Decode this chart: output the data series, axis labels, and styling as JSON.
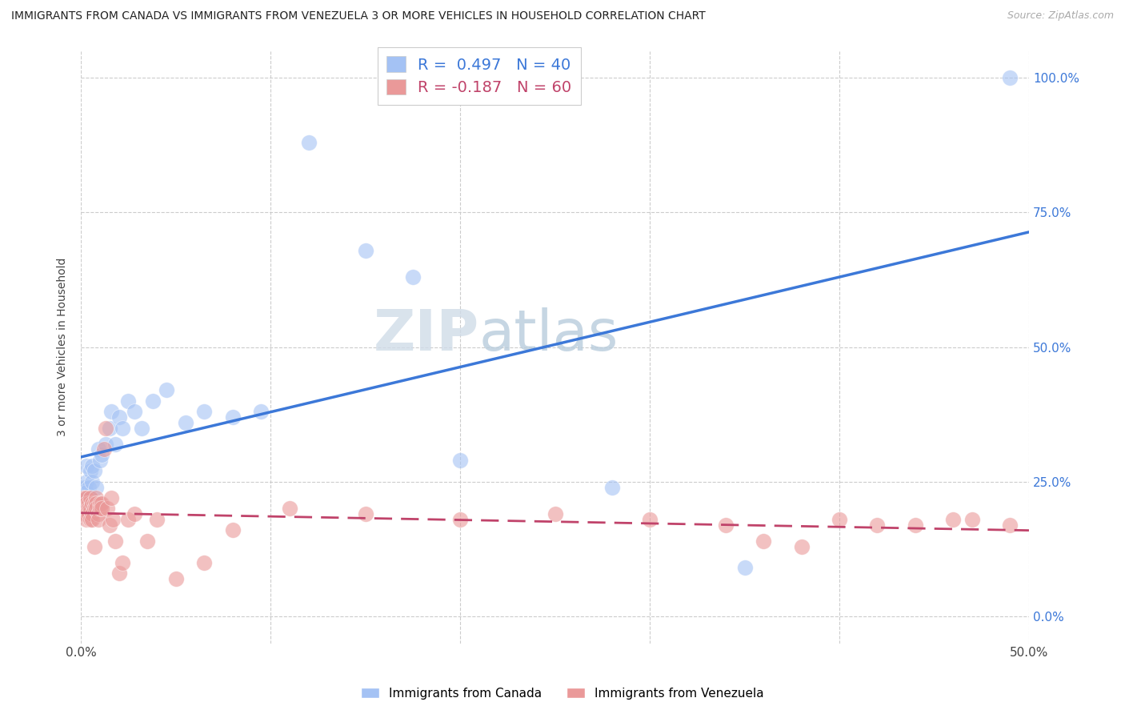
{
  "title": "IMMIGRANTS FROM CANADA VS IMMIGRANTS FROM VENEZUELA 3 OR MORE VEHICLES IN HOUSEHOLD CORRELATION CHART",
  "source": "Source: ZipAtlas.com",
  "ylabel": "3 or more Vehicles in Household",
  "xlim": [
    0.0,
    0.5
  ],
  "ylim": [
    -0.05,
    1.05
  ],
  "canada_color": "#a4c2f4",
  "venezuela_color": "#ea9999",
  "canada_line_color": "#3c78d8",
  "venezuela_line_color": "#c0436a",
  "R_canada": 0.497,
  "N_canada": 40,
  "R_venezuela": -0.187,
  "N_venezuela": 60,
  "legend_label_canada": "Immigrants from Canada",
  "legend_label_venezuela": "Immigrants from Venezuela",
  "watermark_zip": "ZIP",
  "watermark_atlas": "atlas",
  "canada_x": [
    0.001,
    0.001,
    0.002,
    0.002,
    0.003,
    0.003,
    0.003,
    0.004,
    0.004,
    0.005,
    0.005,
    0.006,
    0.006,
    0.007,
    0.008,
    0.009,
    0.01,
    0.011,
    0.013,
    0.015,
    0.016,
    0.018,
    0.02,
    0.022,
    0.025,
    0.028,
    0.032,
    0.038,
    0.045,
    0.055,
    0.065,
    0.08,
    0.095,
    0.12,
    0.15,
    0.175,
    0.2,
    0.28,
    0.35,
    0.49
  ],
  "canada_y": [
    0.22,
    0.2,
    0.24,
    0.21,
    0.25,
    0.23,
    0.28,
    0.22,
    0.24,
    0.27,
    0.22,
    0.25,
    0.28,
    0.27,
    0.24,
    0.31,
    0.29,
    0.3,
    0.32,
    0.35,
    0.38,
    0.32,
    0.37,
    0.35,
    0.4,
    0.38,
    0.35,
    0.4,
    0.42,
    0.36,
    0.38,
    0.37,
    0.38,
    0.88,
    0.68,
    0.63,
    0.29,
    0.24,
    0.09,
    1.0
  ],
  "venezuela_x": [
    0.001,
    0.001,
    0.002,
    0.002,
    0.002,
    0.003,
    0.003,
    0.003,
    0.003,
    0.004,
    0.004,
    0.004,
    0.005,
    0.005,
    0.005,
    0.006,
    0.006,
    0.006,
    0.007,
    0.007,
    0.007,
    0.008,
    0.008,
    0.008,
    0.009,
    0.009,
    0.01,
    0.01,
    0.011,
    0.011,
    0.012,
    0.013,
    0.014,
    0.015,
    0.016,
    0.017,
    0.018,
    0.02,
    0.022,
    0.025,
    0.028,
    0.035,
    0.04,
    0.05,
    0.065,
    0.08,
    0.11,
    0.15,
    0.2,
    0.25,
    0.3,
    0.34,
    0.36,
    0.38,
    0.4,
    0.42,
    0.44,
    0.46,
    0.47,
    0.49
  ],
  "venezuela_y": [
    0.22,
    0.2,
    0.22,
    0.2,
    0.19,
    0.22,
    0.21,
    0.19,
    0.18,
    0.21,
    0.2,
    0.19,
    0.22,
    0.2,
    0.18,
    0.21,
    0.19,
    0.18,
    0.21,
    0.2,
    0.13,
    0.22,
    0.21,
    0.2,
    0.19,
    0.18,
    0.21,
    0.2,
    0.21,
    0.2,
    0.31,
    0.35,
    0.2,
    0.17,
    0.22,
    0.18,
    0.14,
    0.08,
    0.1,
    0.18,
    0.19,
    0.14,
    0.18,
    0.07,
    0.1,
    0.16,
    0.2,
    0.19,
    0.18,
    0.19,
    0.18,
    0.17,
    0.14,
    0.13,
    0.18,
    0.17,
    0.17,
    0.18,
    0.18,
    0.17
  ],
  "y_tick_vals": [
    0.0,
    0.25,
    0.5,
    0.75,
    1.0
  ],
  "y_tick_labels": [
    "0.0%",
    "25.0%",
    "50.0%",
    "75.0%",
    "100.0%"
  ],
  "x_tick_vals": [
    0.0,
    0.1,
    0.2,
    0.3,
    0.4,
    0.5
  ],
  "grid_color": "#cccccc",
  "background_color": "#ffffff"
}
